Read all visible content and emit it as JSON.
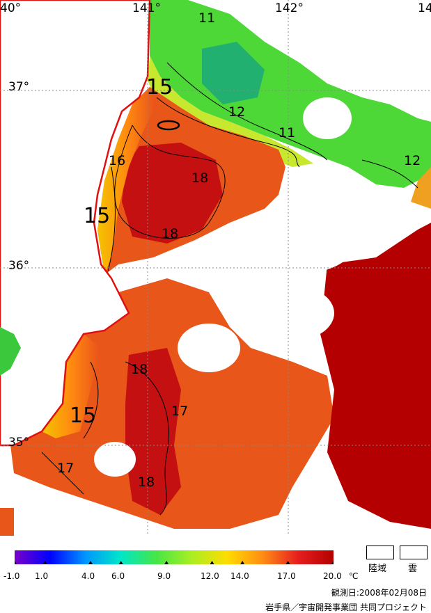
{
  "map": {
    "lon_labels": [
      "40°",
      "141°",
      "142°",
      "14"
    ],
    "lat_labels": [
      "37°",
      "36°",
      "35°"
    ],
    "isotherms": [
      "11",
      "15",
      "12",
      "11",
      "16",
      "18",
      "15",
      "18",
      "12",
      "18",
      "17",
      "15",
      "17",
      "18"
    ]
  },
  "colorbar": {
    "ticks": [
      "-1.0",
      "1.0",
      "4.0",
      "6.0",
      "9.0",
      "12.0",
      "14.0",
      "17.0",
      "20.0"
    ],
    "unit": "℃",
    "colors": [
      "#7a00c8",
      "#0000ff",
      "#0096ff",
      "#00e6c8",
      "#46e646",
      "#aaee22",
      "#ffdc00",
      "#ff8c14",
      "#e61e1e",
      "#b40000"
    ]
  },
  "legend": {
    "land": "陸域",
    "cloud": "雲"
  },
  "observation_date": "観測日:2008年02月08日",
  "credit": "岩手県／宇宙開発事業団 共同プロジェクト"
}
